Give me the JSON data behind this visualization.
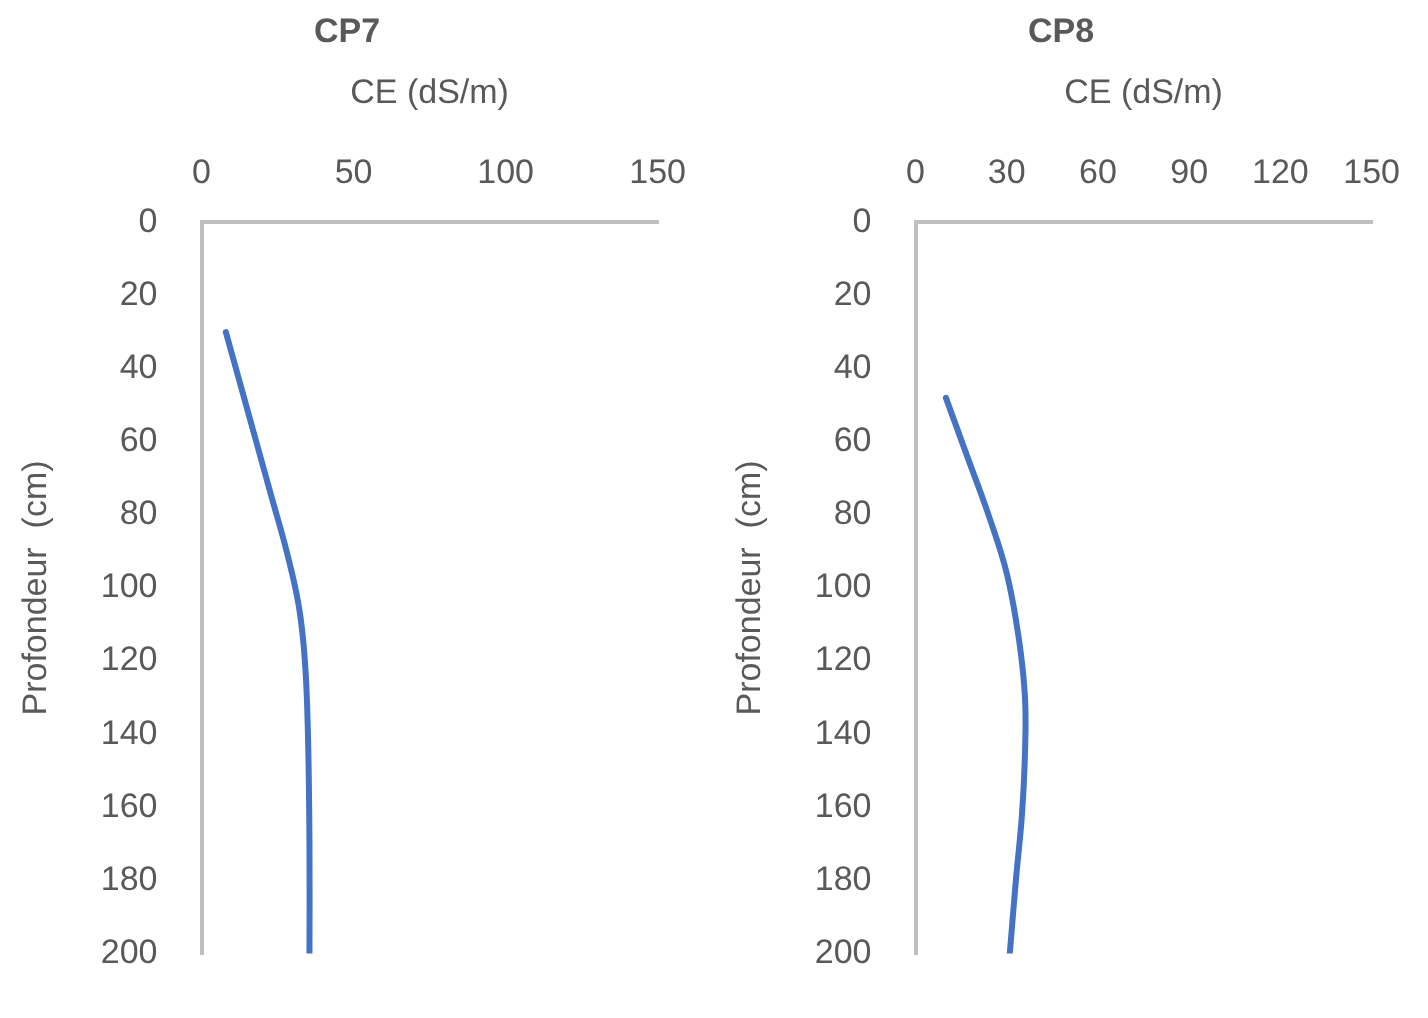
{
  "chart_data": [
    {
      "type": "line",
      "title": "CP7",
      "xlabel": "CE (dS/m)",
      "ylabel": "Profondeur  (cm)",
      "xlim": [
        0,
        150
      ],
      "xticks": [
        0,
        50,
        100,
        150
      ],
      "ylim": [
        200,
        0
      ],
      "yticks": [
        0,
        20,
        40,
        60,
        80,
        100,
        120,
        140,
        160,
        180,
        200
      ],
      "grid": false,
      "legend": false,
      "marker": "none",
      "series": [
        {
          "color": "#4472c4",
          "x": [
            8,
            13,
            18,
            23,
            28,
            32,
            34,
            35,
            35.5,
            35.5
          ],
          "values": [
            30,
            45,
            60,
            75,
            90,
            105,
            120,
            140,
            170,
            200
          ]
        }
      ]
    },
    {
      "type": "line",
      "title": "CP8",
      "xlabel": "CE (dS/m)",
      "ylabel": "Profondeur  (cm)",
      "xlim": [
        0,
        150
      ],
      "xticks": [
        0,
        30,
        60,
        90,
        120,
        150
      ],
      "ylim": [
        200,
        0
      ],
      "yticks": [
        0,
        20,
        40,
        60,
        80,
        100,
        120,
        140,
        160,
        180,
        200
      ],
      "grid": false,
      "legend": false,
      "marker": "none",
      "series": [
        {
          "color": "#4472c4",
          "x": [
            10,
            17,
            24,
            30,
            34,
            36,
            36,
            35,
            33,
            31
          ],
          "values": [
            48,
            64,
            80,
            96,
            114,
            130,
            145,
            162,
            180,
            200
          ]
        }
      ]
    }
  ]
}
